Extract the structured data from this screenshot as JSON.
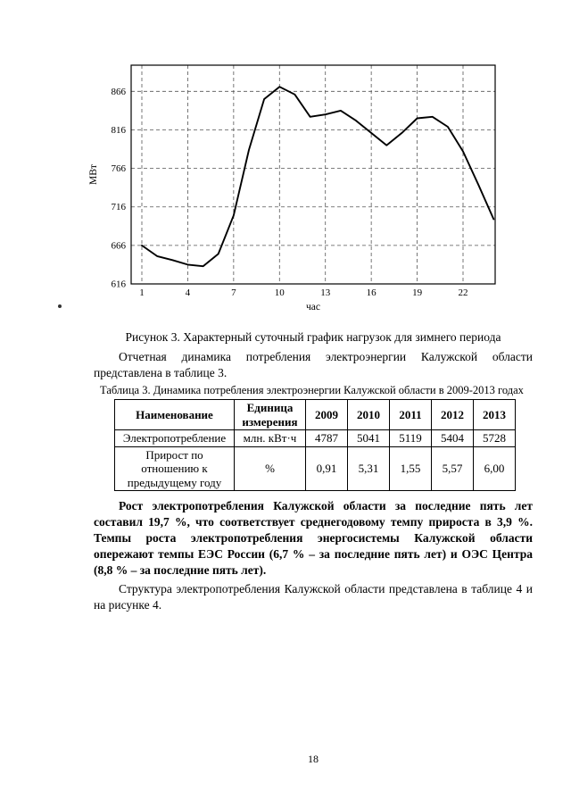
{
  "page_number": "18",
  "figure": {
    "caption": "Рисунок 3.  Характерный суточный график нагрузок для зимнего периода"
  },
  "chart_data": {
    "type": "line",
    "title": "",
    "xlabel": "час",
    "ylabel": "МВт",
    "x": [
      1,
      2,
      3,
      4,
      5,
      6,
      7,
      8,
      9,
      10,
      11,
      12,
      13,
      14,
      15,
      16,
      17,
      18,
      19,
      20,
      21,
      22,
      23,
      24
    ],
    "values": [
      666,
      652,
      647,
      641,
      639,
      655,
      705,
      790,
      856,
      872,
      862,
      833,
      836,
      841,
      828,
      812,
      796,
      812,
      831,
      833,
      820,
      788,
      745,
      700
    ],
    "xlim": [
      0.3,
      24.1
    ],
    "ylim": [
      616,
      900
    ],
    "xticks": [
      1,
      4,
      7,
      10,
      13,
      16,
      19,
      22
    ],
    "yticks": [
      616,
      666,
      716,
      766,
      816,
      866
    ],
    "grid": true,
    "legend": "none",
    "line_color": "#000000"
  },
  "text": {
    "p1": "Отчетная динамика потребления электроэнергии Калужской области представлена в таблице 3.",
    "p2": "Рост электропотребления Калужской области за последние пять лет составил 19,7 %, что соответствует среднегодовому темпу прироста в 3,9 %. Темпы роста электропотребления энергосистемы Калужской области опережают темпы ЕЭС России (6,7 % – за последние пять лет) и ОЭС Центра (8,8 % – за последние пять лет).",
    "p3": "Структура электропотребления Калужской области представлена в таблице 4 и на рисунке 4."
  },
  "table": {
    "caption": "Таблица 3.  Динамика потребления электроэнергии Калужской области в 2009-2013 годах",
    "headers": [
      "Наименование",
      "Единица измерения",
      "2009",
      "2010",
      "2011",
      "2012",
      "2013"
    ],
    "rows": [
      [
        "Электропотребление",
        "млн. кВт·ч",
        "4787",
        "5041",
        "5119",
        "5404",
        "5728"
      ],
      [
        "Прирост по отношению к предыдущему году",
        "%",
        "0,91",
        "5,31",
        "1,55",
        "5,57",
        "6,00"
      ]
    ]
  }
}
